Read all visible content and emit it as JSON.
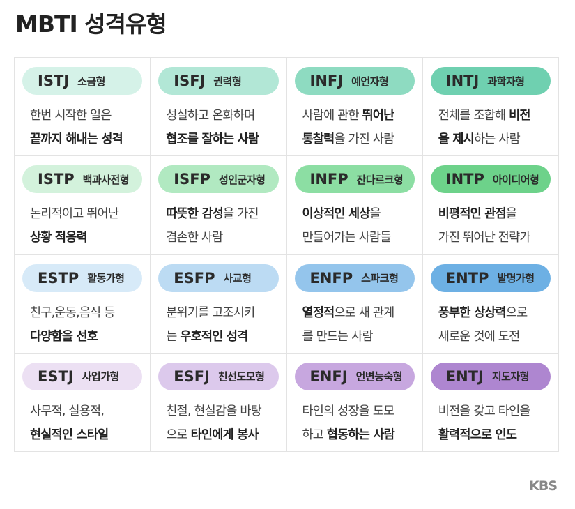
{
  "title": "MBTI 성격유형",
  "cards": [
    {
      "code": "ISTJ",
      "name": "소금형",
      "lines": [
        [
          {
            "text": "한번 시작한 일은",
            "bold": false
          }
        ],
        [
          {
            "text": "끝까지 해내는 성격",
            "bold": true
          }
        ]
      ]
    },
    {
      "code": "ISFJ",
      "name": "권력형",
      "lines": [
        [
          {
            "text": "성실하고 온화하며",
            "bold": false
          }
        ],
        [
          {
            "text": "협조를 잘하는 사람",
            "bold": true
          }
        ]
      ]
    },
    {
      "code": "INFJ",
      "name": "예언자형",
      "lines": [
        [
          {
            "text": "사람에 관한 ",
            "bold": false
          },
          {
            "text": "뛰어난",
            "bold": true
          }
        ],
        [
          {
            "text": "통찰력",
            "bold": true
          },
          {
            "text": "을 가진 사람",
            "bold": false
          }
        ]
      ]
    },
    {
      "code": "INTJ",
      "name": "과학자형",
      "lines": [
        [
          {
            "text": "전체를 조합해 ",
            "bold": false
          },
          {
            "text": "비전",
            "bold": true
          }
        ],
        [
          {
            "text": "을 제시",
            "bold": true
          },
          {
            "text": "하는 사람",
            "bold": false
          }
        ]
      ]
    },
    {
      "code": "ISTP",
      "name": "백과사전형",
      "lines": [
        [
          {
            "text": "논리적이고 뛰어난",
            "bold": false
          }
        ],
        [
          {
            "text": "상황 적응력",
            "bold": true
          }
        ]
      ]
    },
    {
      "code": "ISFP",
      "name": "성인군자형",
      "lines": [
        [
          {
            "text": "따뜻한 감성",
            "bold": true
          },
          {
            "text": "을 가진",
            "bold": false
          }
        ],
        [
          {
            "text": "겸손한 사람",
            "bold": false
          }
        ]
      ]
    },
    {
      "code": "INFP",
      "name": "잔다르크형",
      "lines": [
        [
          {
            "text": "이상적인 세상",
            "bold": true
          },
          {
            "text": "을",
            "bold": false
          }
        ],
        [
          {
            "text": "만들어가는 사람들",
            "bold": false
          }
        ]
      ]
    },
    {
      "code": "INTP",
      "name": "아이디어형",
      "lines": [
        [
          {
            "text": "비평적인 관점",
            "bold": true
          },
          {
            "text": "을",
            "bold": false
          }
        ],
        [
          {
            "text": "가진 뛰어난 전략가",
            "bold": false
          }
        ]
      ]
    },
    {
      "code": "ESTP",
      "name": "활동가형",
      "lines": [
        [
          {
            "text": "친구,운동,음식 등",
            "bold": false
          }
        ],
        [
          {
            "text": "다양함을 선호",
            "bold": true
          }
        ]
      ]
    },
    {
      "code": "ESFP",
      "name": "사교형",
      "lines": [
        [
          {
            "text": "분위기를 고조시키",
            "bold": false
          }
        ],
        [
          {
            "text": "는 ",
            "bold": false
          },
          {
            "text": "우호적인 성격",
            "bold": true
          }
        ]
      ]
    },
    {
      "code": "ENFP",
      "name": "스파크형",
      "lines": [
        [
          {
            "text": "열정적",
            "bold": true
          },
          {
            "text": "으로 새 관계",
            "bold": false
          }
        ],
        [
          {
            "text": "를 만드는 사람",
            "bold": false
          }
        ]
      ]
    },
    {
      "code": "ENTP",
      "name": "발명가형",
      "lines": [
        [
          {
            "text": "풍부한 상상력",
            "bold": true
          },
          {
            "text": "으로",
            "bold": false
          }
        ],
        [
          {
            "text": "새로운 것에 도전",
            "bold": false
          }
        ]
      ]
    },
    {
      "code": "ESTJ",
      "name": "사업가형",
      "lines": [
        [
          {
            "text": "사무적, 실용적,",
            "bold": false
          }
        ],
        [
          {
            "text": "현실적인 스타일",
            "bold": true
          }
        ]
      ]
    },
    {
      "code": "ESFJ",
      "name": "친선도모형",
      "lines": [
        [
          {
            "text": "친절, 현실감을 바탕",
            "bold": false
          }
        ],
        [
          {
            "text": "으로 ",
            "bold": false
          },
          {
            "text": "타인에게 봉사",
            "bold": true
          }
        ]
      ]
    },
    {
      "code": "ENFJ",
      "name": "언변능숙형",
      "lines": [
        [
          {
            "text": "타인의 성장을 도모",
            "bold": false
          }
        ],
        [
          {
            "text": "하고 ",
            "bold": false
          },
          {
            "text": "협동하는 사람",
            "bold": true
          }
        ]
      ]
    },
    {
      "code": "ENTJ",
      "name": "지도자형",
      "lines": [
        [
          {
            "text": "비전을 갖고 타인을",
            "bold": false
          }
        ],
        [
          {
            "text": "활력적으로 인도",
            "bold": true
          }
        ]
      ]
    }
  ],
  "footer": "KBS"
}
